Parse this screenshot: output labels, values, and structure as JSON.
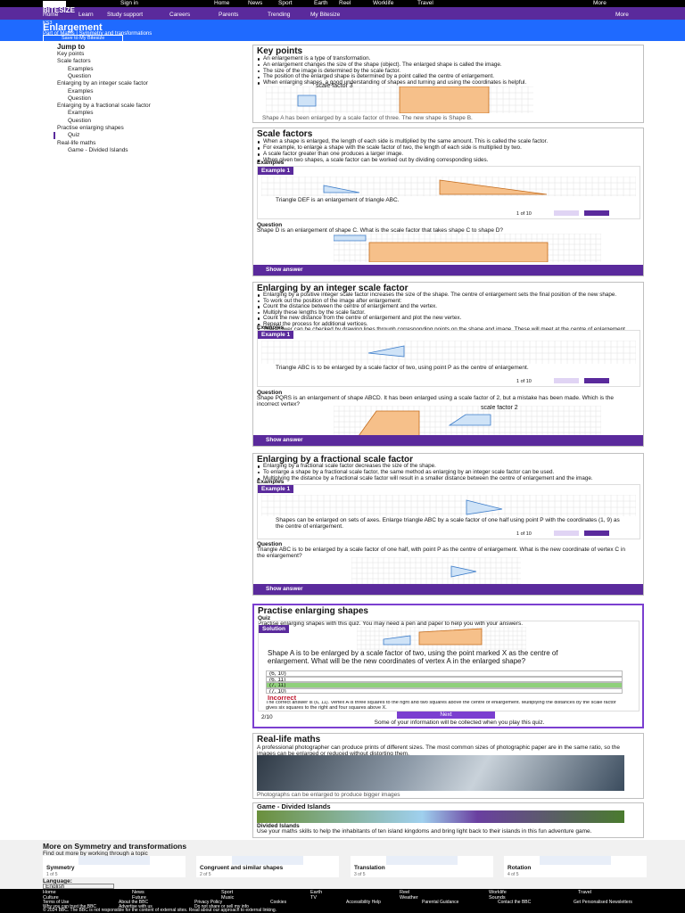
{
  "header": {
    "nav": [
      "Sign in",
      "Home",
      "News",
      "Sport",
      "Earth",
      "Reel",
      "Worklife",
      "Travel",
      "More"
    ],
    "brand": "BITESIZE",
    "subnav": [
      "Home",
      "Learn",
      "Study support",
      "Careers",
      "Parents",
      "Trending",
      "My Bitesize"
    ],
    "more": "More",
    "level": "KS3",
    "title": "Enlargement",
    "breadcrumb": "Part of Maths | Symmetry and transformations",
    "save": "Save to My Bitesize"
  },
  "jump_to": {
    "title": "Jump to",
    "items": [
      "Key points",
      "Scale factors",
      "Examples",
      "Question",
      "Enlarging by an integer scale factor",
      "Examples",
      "Question",
      "Enlarging by a fractional scale factor",
      "Examples",
      "Question",
      "Practise enlarging shapes",
      "Quiz",
      "Real-life maths",
      "Game - Divided Islands"
    ]
  },
  "key_points": {
    "heading": "Key points",
    "bullets": [
      "An enlargement is a type of transformation.",
      "An enlargement changes the size of the shape (object). The enlarged shape is called the image.",
      "The size of the image is determined by the scale factor.",
      "The position of the enlarged shape is determined by a point called the centre of enlargement.",
      "When enlarging shapes, a good understanding of shapes and turning and using the coordinates is helpful."
    ],
    "figure_label": "scale factor 3",
    "caption": "Shape A has been enlarged by a scale factor of three. The new shape is Shape B."
  },
  "scale_factors": {
    "heading": "Scale factors",
    "bullets": [
      "When a shape is enlarged, the length of each side is multiplied by the same amount. This is called the scale factor.",
      "For example, to enlarge a shape with the scale factor of two, the length of each side is multiplied by two.",
      "A scale factor greater than one produces a larger image.",
      "When given two shapes, a scale factor can be worked out by dividing corresponding sides."
    ],
    "examples": "Examples",
    "example_tab": "Example 1",
    "caption": "Triangle DEF is an enlargement of triangle ABC.",
    "pager": "1 of 10",
    "question": "Question",
    "question_text": "Shape D is an enlargement of shape C. What is the scale factor that takes shape C to shape D?",
    "show_answer": "Show answer"
  },
  "integer": {
    "heading": "Enlarging by an integer scale factor",
    "bullets": [
      "Enlarging by a positive integer scale factor increases the size of the shape. The centre of enlargement sets the final position of the new shape.",
      "To work out the position of the image after enlargement:",
      "Count the distance between the centre of enlargement and the vertex.",
      "Multiply these lengths by the scale factor.",
      "Count the new distance from the centre of enlargement and plot the new vertex.",
      "Repeat the process for additional vertices.",
      "The answer can be checked by drawing lines through corresponding points on the shape and image. These will meet at the centre of enlargement."
    ],
    "examples": "Examples",
    "example_tab": "Example 1",
    "caption": "Triangle ABC is to be enlarged by a scale factor of two, using point P as the centre of enlargement.",
    "pager": "1 of 10",
    "question": "Question",
    "question_text": "Shape PQRS is an enlargement of shape ABCD. It has been enlarged using a scale factor of 2, but a mistake has been made. Which is the incorrect vertex?",
    "figure_label": "scale factor 2",
    "show_answer": "Show answer"
  },
  "fractional": {
    "heading": "Enlarging by a fractional scale factor",
    "bullets": [
      "Enlarging by a fractional scale factor decreases the size of the shape.",
      "To enlarge a shape by a fractional scale factor, the same method as enlarging by an integer scale factor can be used.",
      "Multiplying the distance by a fractional scale factor will result in a smaller distance between the centre of enlargement and the image."
    ],
    "examples": "Examples",
    "example_tab": "Example 1",
    "caption": "Shapes can be enlarged on sets of axes. Enlarge triangle ABC by a scale factor of one half using point P with the coordinates (1, 9) as the centre of enlargement.",
    "pager": "1 of 10",
    "question": "Question",
    "question_text": "Triangle ABC is to be enlarged by a scale factor of one half, with point P as the centre of enlargement. What is the new coordinate of vertex C in the enlargement?",
    "show_answer": "Show answer"
  },
  "practise": {
    "heading": "Practise enlarging shapes",
    "quiz": "Quiz",
    "intro": "Practise enlarging shapes with this quiz. You may need a pen and paper to help you with your answers.",
    "solution": "Solution",
    "question_text": "Shape A is to be enlarged by a scale factor of two, using the point marked X as the centre of enlargement. What will be the new coordinates of vertex A in the enlarged shape?",
    "options": [
      "(6, 10)",
      "(6, 11)",
      "(7, 11)",
      "(7, 10)"
    ],
    "result": "Incorrect",
    "explanation": "The correct answer is (6, 11). Vertex A is three squares to the right and two squares above the centre of enlargement. Multiplying the distances by the scale factor gives six squares to the right and four squares above X.",
    "score": "2/10",
    "next": "Next",
    "notice": "Some of your information will be collected when you play this quiz."
  },
  "real_life": {
    "heading": "Real-life maths",
    "text": "A professional photographer can produce prints of different sizes. The most common sizes of photographic paper are in the same ratio, so the images can be enlarged or reduced without distorting them.",
    "caption": "Photographs can be enlarged to produce bigger images"
  },
  "game": {
    "heading": "Game - Divided Islands",
    "title": "Divided Islands",
    "text": "Use your maths skills to help the inhabitants of ten island kingdoms and bring light back to their islands in this fun adventure game."
  },
  "more": {
    "heading": "More on Symmetry and transformations",
    "subheading": "Find out more by working through a topic",
    "cards": [
      {
        "title": "Symmetry",
        "count": "1 of 5"
      },
      {
        "title": "Congruent and similar shapes",
        "count": "2 of 5"
      },
      {
        "title": "Translation",
        "count": "3 of 5"
      },
      {
        "title": "Rotation",
        "count": "4 of 5"
      }
    ]
  },
  "language": {
    "label": "Language:",
    "value": "English"
  },
  "footer": {
    "links": [
      "Home",
      "News",
      "Sport",
      "Earth",
      "Reel",
      "Worklife",
      "Travel",
      "Culture",
      "Future",
      "Music",
      "TV",
      "Weather",
      "Sounds"
    ],
    "legal": [
      "Terms of Use",
      "About the BBC",
      "Privacy Policy",
      "Cookies",
      "Accessibility Help",
      "Parental Guidance",
      "Contact the BBC",
      "Get Personalised Newsletters",
      "Why you can trust the BBC",
      "Advertise with us",
      "Do not share or sell my info"
    ],
    "copyright": "© 2024 BBC. The BBC is not responsible for the content of external sites. Read about our approach to external linking."
  }
}
